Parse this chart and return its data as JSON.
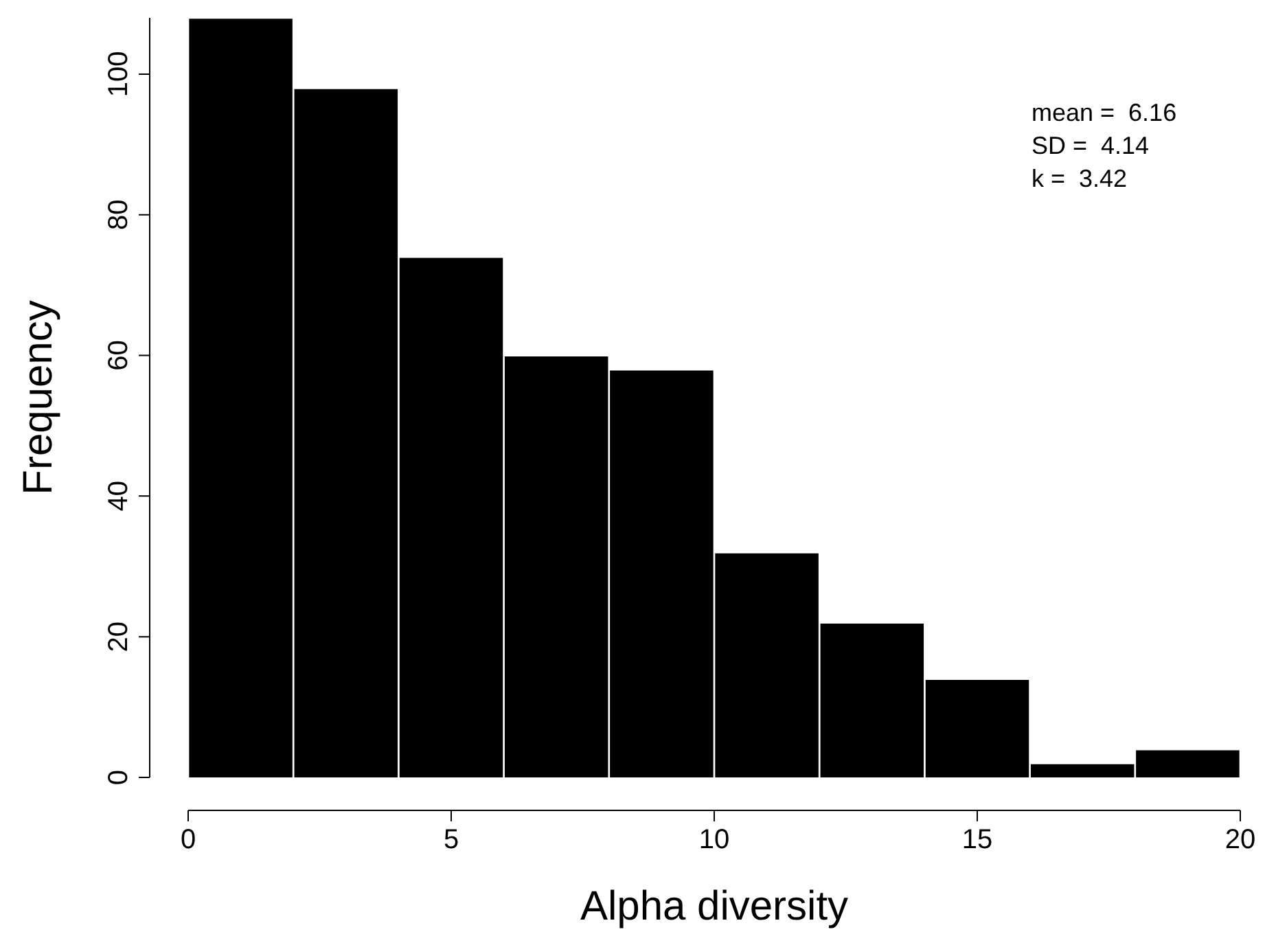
{
  "chart_data": {
    "type": "histogram",
    "xlabel": "Alpha diversity",
    "ylabel": "Frequency",
    "bins": [
      0,
      2,
      4,
      6,
      8,
      10,
      12,
      14,
      16,
      18,
      20
    ],
    "values": [
      108,
      98,
      74,
      60,
      58,
      32,
      22,
      14,
      2,
      4
    ],
    "color": "#000000",
    "xlim": [
      0,
      20
    ],
    "xticks": [
      0,
      5,
      10,
      15,
      20
    ],
    "ylim": [
      0,
      108
    ],
    "yticks": [
      0,
      20,
      40,
      60,
      80,
      100
    ],
    "grid": false,
    "legend": false,
    "annotations": [
      "mean =  6.16",
      "SD =  4.14",
      "k =  3.42"
    ]
  }
}
